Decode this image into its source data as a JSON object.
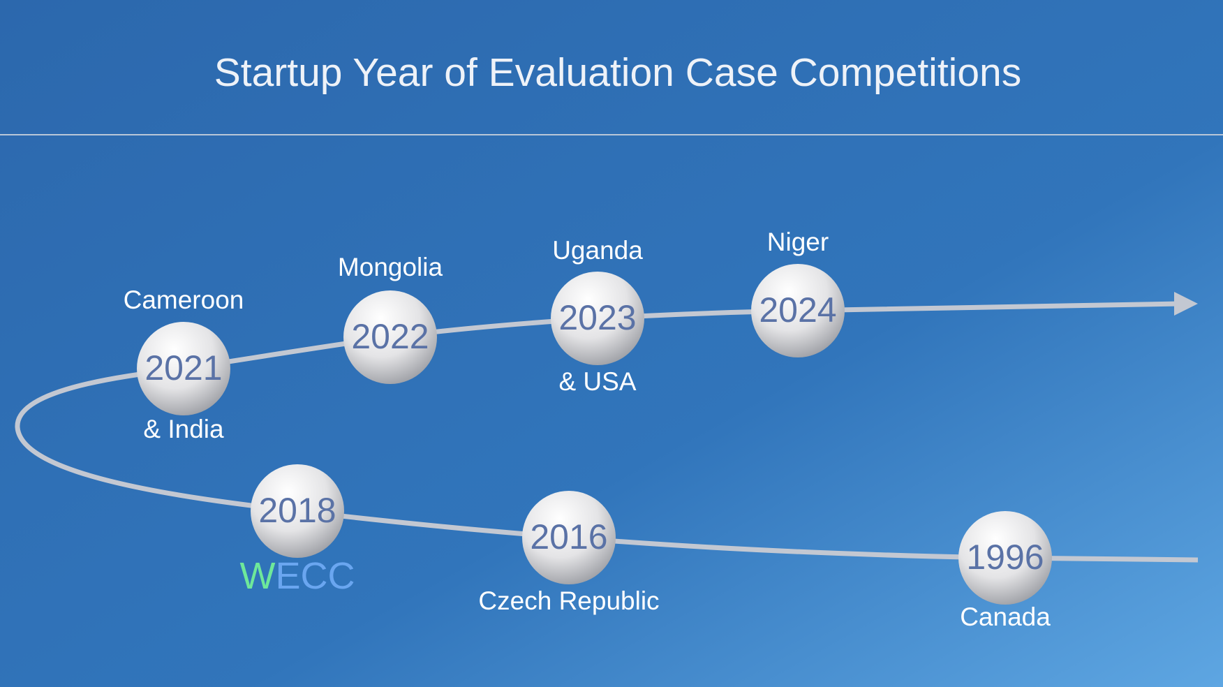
{
  "header": {
    "title": "Startup Year of Evaluation Case Competitions"
  },
  "nodes": [
    {
      "year": "2021",
      "above": "Cameroon",
      "below": "& India"
    },
    {
      "year": "2022",
      "above": "Mongolia"
    },
    {
      "year": "2023",
      "above": "Uganda",
      "below": "& USA"
    },
    {
      "year": "2024",
      "above": "Niger"
    },
    {
      "year": "2018",
      "below_parts": [
        "W",
        "ECC"
      ]
    },
    {
      "year": "2016",
      "below": "Czech Republic"
    },
    {
      "year": "1996",
      "below": "Canada"
    }
  ]
}
